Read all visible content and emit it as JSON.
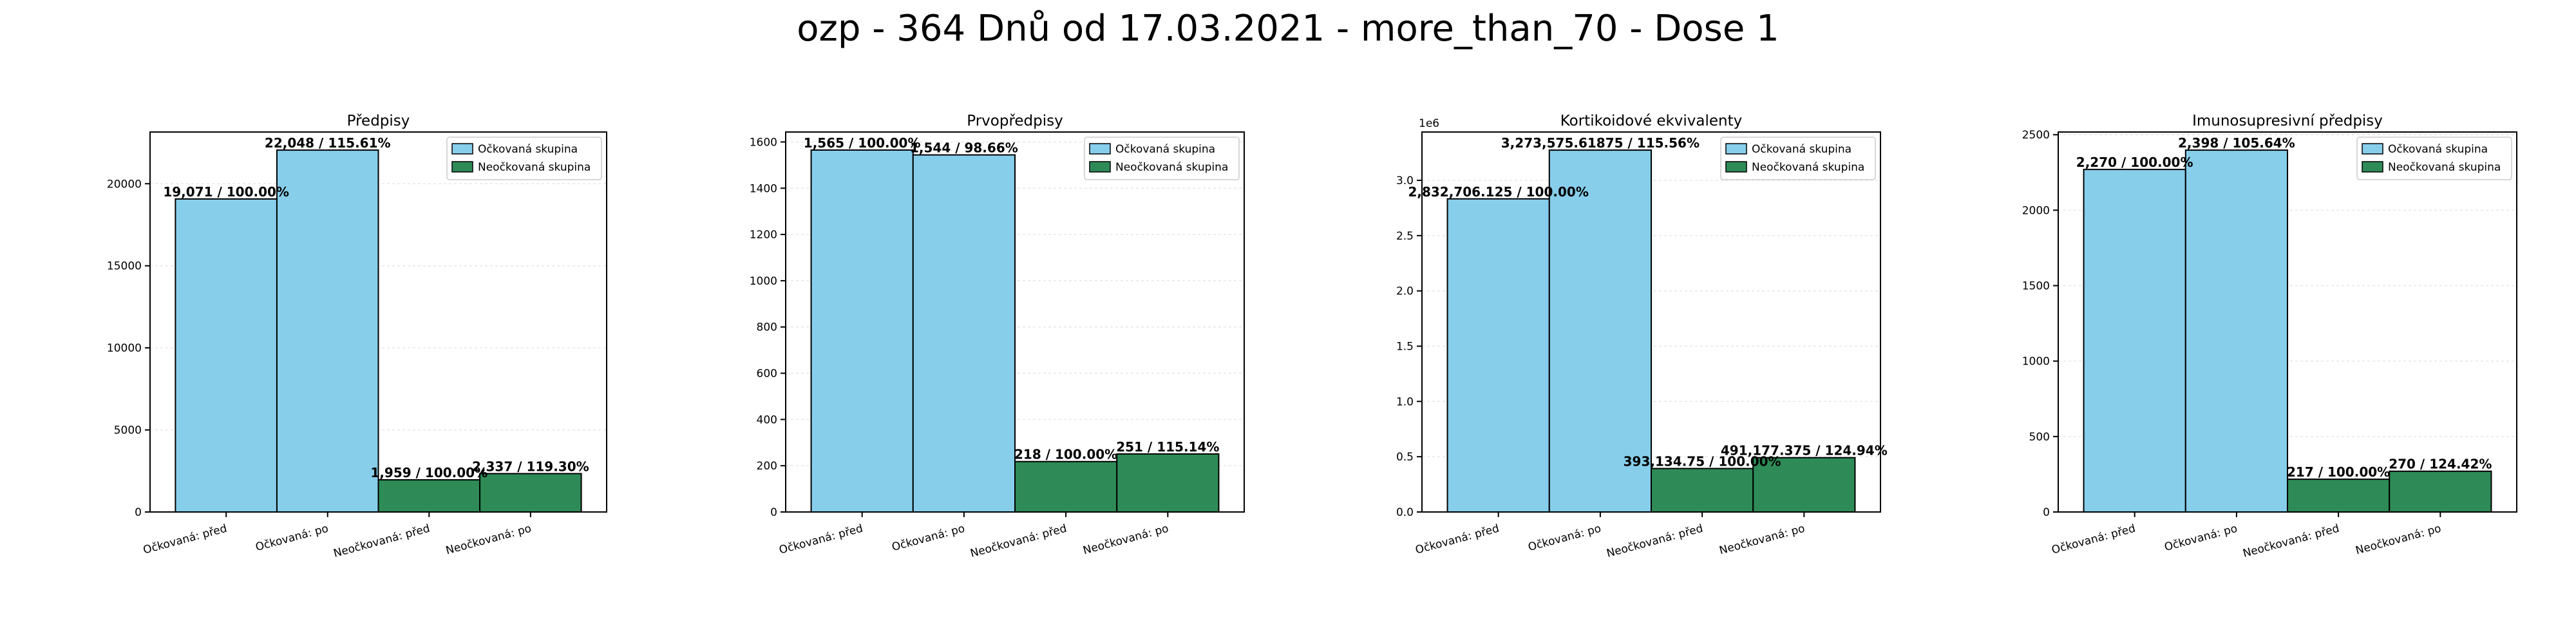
{
  "figure": {
    "suptitle": "ozp - 364 Dnů od 17.03.2021 - more_than_70 - Dose 1",
    "colors": {
      "vaccinated": "#87ceeb",
      "unvaccinated": "#2e8b57",
      "edge": "#000000",
      "grid": "#e6e6e6"
    }
  },
  "chart_data": [
    {
      "type": "bar",
      "title": "Předpisy",
      "categories": [
        "Očkovaná: před",
        "Očkovaná: po",
        "Neočkovaná: před",
        "Neočkovaná: po"
      ],
      "values": [
        19071,
        22048,
        1959,
        2337
      ],
      "bar_labels": [
        "19,071 / 100.00%",
        "22,048 / 115.61%",
        "1,959 / 100.00%",
        "2,337 / 119.30%"
      ],
      "groups": [
        "vaccinated",
        "vaccinated",
        "unvaccinated",
        "unvaccinated"
      ],
      "legend": [
        "Očkovaná skupina",
        "Neočkovaná skupina"
      ],
      "legend_position": "top-right",
      "ylim": [
        0,
        23150
      ],
      "yticks": [
        0,
        5000,
        10000,
        15000,
        20000
      ],
      "ytick_labels": [
        "0",
        "5000",
        "10000",
        "15000",
        "20000"
      ],
      "offset_label": "",
      "grid": true
    },
    {
      "type": "bar",
      "title": "Prvopředpisy",
      "categories": [
        "Očkovaná: před",
        "Očkovaná: po",
        "Neočkovaná: před",
        "Neočkovaná: po"
      ],
      "values": [
        1565,
        1544,
        218,
        251
      ],
      "bar_labels": [
        "1,565 / 100.00%",
        "1,544 / 98.66%",
        "218 / 100.00%",
        "251 / 115.14%"
      ],
      "groups": [
        "vaccinated",
        "vaccinated",
        "unvaccinated",
        "unvaccinated"
      ],
      "legend": [
        "Očkovaná skupina",
        "Neočkovaná skupina"
      ],
      "legend_position": "top-right",
      "ylim": [
        0,
        1643
      ],
      "yticks": [
        0,
        200,
        400,
        600,
        800,
        1000,
        1200,
        1400,
        1600
      ],
      "ytick_labels": [
        "0",
        "200",
        "400",
        "600",
        "800",
        "1000",
        "1200",
        "1400",
        "1600"
      ],
      "offset_label": "",
      "grid": true
    },
    {
      "type": "bar",
      "title": "Kortikoidové ekvivalenty",
      "categories": [
        "Očkovaná: před",
        "Očkovaná: po",
        "Neočkovaná: před",
        "Neočkovaná: po"
      ],
      "values": [
        2832706.125,
        3273575.61875,
        393134.75,
        491177.375
      ],
      "bar_labels": [
        "2,832,706.125 / 100.00%",
        "3,273,575.61875 / 115.56%",
        "393,134.75 / 100.00%",
        "491,177.375 / 124.94%"
      ],
      "groups": [
        "vaccinated",
        "vaccinated",
        "unvaccinated",
        "unvaccinated"
      ],
      "legend": [
        "Očkovaná skupina",
        "Neočkovaná skupina"
      ],
      "legend_position": "top-right",
      "ylim": [
        0,
        3437254
      ],
      "yticks": [
        0,
        500000,
        1000000,
        1500000,
        2000000,
        2500000,
        3000000
      ],
      "ytick_labels": [
        "0.0",
        "0.5",
        "1.0",
        "1.5",
        "2.0",
        "2.5",
        "3.0"
      ],
      "offset_label": "1e6",
      "grid": true
    },
    {
      "type": "bar",
      "title": "Imunosupresivní předpisy",
      "categories": [
        "Očkovaná: před",
        "Očkovaná: po",
        "Neočkovaná: před",
        "Neočkovaná: po"
      ],
      "values": [
        2270,
        2398,
        217,
        270
      ],
      "bar_labels": [
        "2,270 / 100.00%",
        "2,398 / 105.64%",
        "217 / 100.00%",
        "270 / 124.42%"
      ],
      "groups": [
        "vaccinated",
        "vaccinated",
        "unvaccinated",
        "unvaccinated"
      ],
      "legend": [
        "Očkovaná skupina",
        "Neočkovaná skupina"
      ],
      "legend_position": "top-right",
      "ylim": [
        0,
        2518
      ],
      "yticks": [
        0,
        500,
        1000,
        1500,
        2000,
        2500
      ],
      "ytick_labels": [
        "0",
        "500",
        "1000",
        "1500",
        "2000",
        "2500"
      ],
      "offset_label": "",
      "grid": true
    }
  ]
}
